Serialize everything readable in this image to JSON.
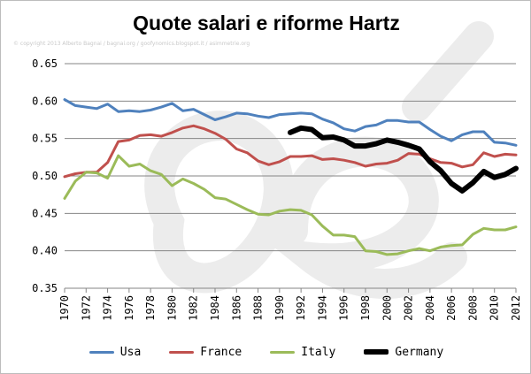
{
  "chart_data": {
    "type": "line",
    "title": "Quote salari e riforme Hartz",
    "credit": "© copyright 2013 Alberto Bagnai / bagnai.org / goofynomics.blogspot.it / asimmetrie.org",
    "watermark": "a/e",
    "xlabel": "",
    "ylabel": "",
    "xlim": [
      1970,
      2012
    ],
    "ylim": [
      0.35,
      0.65
    ],
    "y_ticks": [
      "0.35",
      "0.40",
      "0.45",
      "0.50",
      "0.55",
      "0.60",
      "0.65"
    ],
    "x_ticks": [
      "1970",
      "1972",
      "1974",
      "1976",
      "1978",
      "1980",
      "1982",
      "1984",
      "1986",
      "1988",
      "1990",
      "1992",
      "1994",
      "1996",
      "1998",
      "2000",
      "2002",
      "2004",
      "2006",
      "2008",
      "2010",
      "2012"
    ],
    "grid": "horizontal",
    "legend_position": "bottom",
    "series": [
      {
        "name": "Usa",
        "color": "#4f81bd",
        "line_width": 3,
        "x": [
          1970,
          1971,
          1972,
          1973,
          1974,
          1975,
          1976,
          1977,
          1978,
          1979,
          1980,
          1981,
          1982,
          1983,
          1984,
          1985,
          1986,
          1987,
          1988,
          1989,
          1990,
          1991,
          1992,
          1993,
          1994,
          1995,
          1996,
          1997,
          1998,
          1999,
          2000,
          2001,
          2002,
          2003,
          2004,
          2005,
          2006,
          2007,
          2008,
          2009,
          2010,
          2011,
          2012
        ],
        "values": [
          0.602,
          0.594,
          0.592,
          0.59,
          0.596,
          0.586,
          0.587,
          0.586,
          0.588,
          0.592,
          0.597,
          0.587,
          0.589,
          0.582,
          0.575,
          0.579,
          0.584,
          0.583,
          0.58,
          0.578,
          0.582,
          0.583,
          0.584,
          0.583,
          0.576,
          0.571,
          0.563,
          0.56,
          0.566,
          0.568,
          0.574,
          0.574,
          0.572,
          0.572,
          0.562,
          0.553,
          0.547,
          0.555,
          0.559,
          0.559,
          0.545,
          0.544,
          0.541
        ]
      },
      {
        "name": "France",
        "color": "#c0504d",
        "line_width": 3,
        "x": [
          1970,
          1971,
          1972,
          1973,
          1974,
          1975,
          1976,
          1977,
          1978,
          1979,
          1980,
          1981,
          1982,
          1983,
          1984,
          1985,
          1986,
          1987,
          1988,
          1989,
          1990,
          1991,
          1992,
          1993,
          1994,
          1995,
          1996,
          1997,
          1998,
          1999,
          2000,
          2001,
          2002,
          2003,
          2004,
          2005,
          2006,
          2007,
          2008,
          2009,
          2010,
          2011,
          2012
        ],
        "values": [
          0.499,
          0.503,
          0.505,
          0.505,
          0.518,
          0.546,
          0.548,
          0.554,
          0.555,
          0.553,
          0.558,
          0.564,
          0.567,
          0.563,
          0.557,
          0.549,
          0.536,
          0.531,
          0.52,
          0.515,
          0.519,
          0.526,
          0.526,
          0.527,
          0.522,
          0.523,
          0.521,
          0.518,
          0.513,
          0.516,
          0.517,
          0.521,
          0.53,
          0.529,
          0.523,
          0.518,
          0.517,
          0.512,
          0.515,
          0.531,
          0.526,
          0.529,
          0.528
        ]
      },
      {
        "name": "Italy",
        "color": "#9bbb59",
        "line_width": 3,
        "x": [
          1970,
          1971,
          1972,
          1973,
          1974,
          1975,
          1976,
          1977,
          1978,
          1979,
          1980,
          1981,
          1982,
          1983,
          1984,
          1985,
          1986,
          1987,
          1988,
          1989,
          1990,
          1991,
          1992,
          1993,
          1994,
          1995,
          1996,
          1997,
          1998,
          1999,
          2000,
          2001,
          2002,
          2003,
          2004,
          2005,
          2006,
          2007,
          2008,
          2009,
          2010,
          2011,
          2012
        ],
        "values": [
          0.47,
          0.493,
          0.505,
          0.504,
          0.497,
          0.527,
          0.513,
          0.516,
          0.507,
          0.502,
          0.487,
          0.496,
          0.49,
          0.482,
          0.471,
          0.469,
          0.462,
          0.455,
          0.449,
          0.448,
          0.453,
          0.455,
          0.454,
          0.448,
          0.433,
          0.421,
          0.421,
          0.419,
          0.4,
          0.399,
          0.395,
          0.396,
          0.4,
          0.403,
          0.4,
          0.405,
          0.407,
          0.408,
          0.422,
          0.43,
          0.428,
          0.428,
          0.432
        ]
      },
      {
        "name": "Germany",
        "color": "#000000",
        "line_width": 6,
        "x": [
          1991,
          1992,
          1993,
          1994,
          1995,
          1996,
          1997,
          1998,
          1999,
          2000,
          2001,
          2002,
          2003,
          2004,
          2005,
          2006,
          2007,
          2008,
          2009,
          2010,
          2011,
          2012
        ],
        "values": [
          0.558,
          0.564,
          0.562,
          0.551,
          0.552,
          0.548,
          0.54,
          0.54,
          0.543,
          0.548,
          0.545,
          0.541,
          0.536,
          0.519,
          0.507,
          0.49,
          0.48,
          0.491,
          0.506,
          0.498,
          0.502,
          0.51
        ]
      }
    ]
  }
}
